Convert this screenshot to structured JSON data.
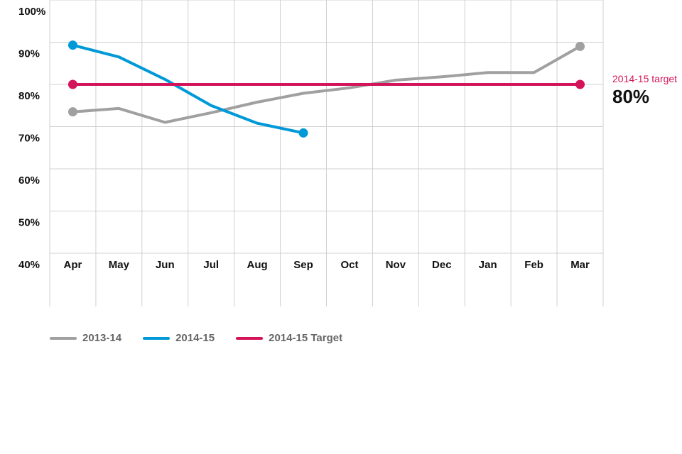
{
  "chart_data": {
    "type": "line",
    "categories": [
      "Apr",
      "May",
      "Jun",
      "Jul",
      "Aug",
      "Sep",
      "Oct",
      "Nov",
      "Dec",
      "Jan",
      "Feb",
      "Mar"
    ],
    "y_ticks": [
      "100%",
      "90%",
      "80%",
      "70%",
      "60%",
      "50%",
      "40%"
    ],
    "ylim": [
      40,
      100
    ],
    "grid": true,
    "series": [
      {
        "name": "2013-14",
        "color": "#a0a0a0",
        "values": [
          73.5,
          74.3,
          71.0,
          73.3,
          75.8,
          77.9,
          79.2,
          81.0,
          81.8,
          82.8,
          82.8,
          89.0
        ]
      },
      {
        "name": "2014-15",
        "color": "#0099d8",
        "values": [
          89.3,
          86.5,
          81.2,
          75.0,
          70.8,
          68.5,
          null,
          null,
          null,
          null,
          null,
          null
        ]
      },
      {
        "name": "2014-15 Target",
        "color": "#d4145a",
        "values": [
          80,
          80,
          80,
          80,
          80,
          80,
          80,
          80,
          80,
          80,
          80,
          80
        ]
      }
    ],
    "callout": {
      "label": "2014-15 target",
      "value": "80%",
      "color": "#d4145a"
    },
    "legend_position": "bottom-left"
  }
}
